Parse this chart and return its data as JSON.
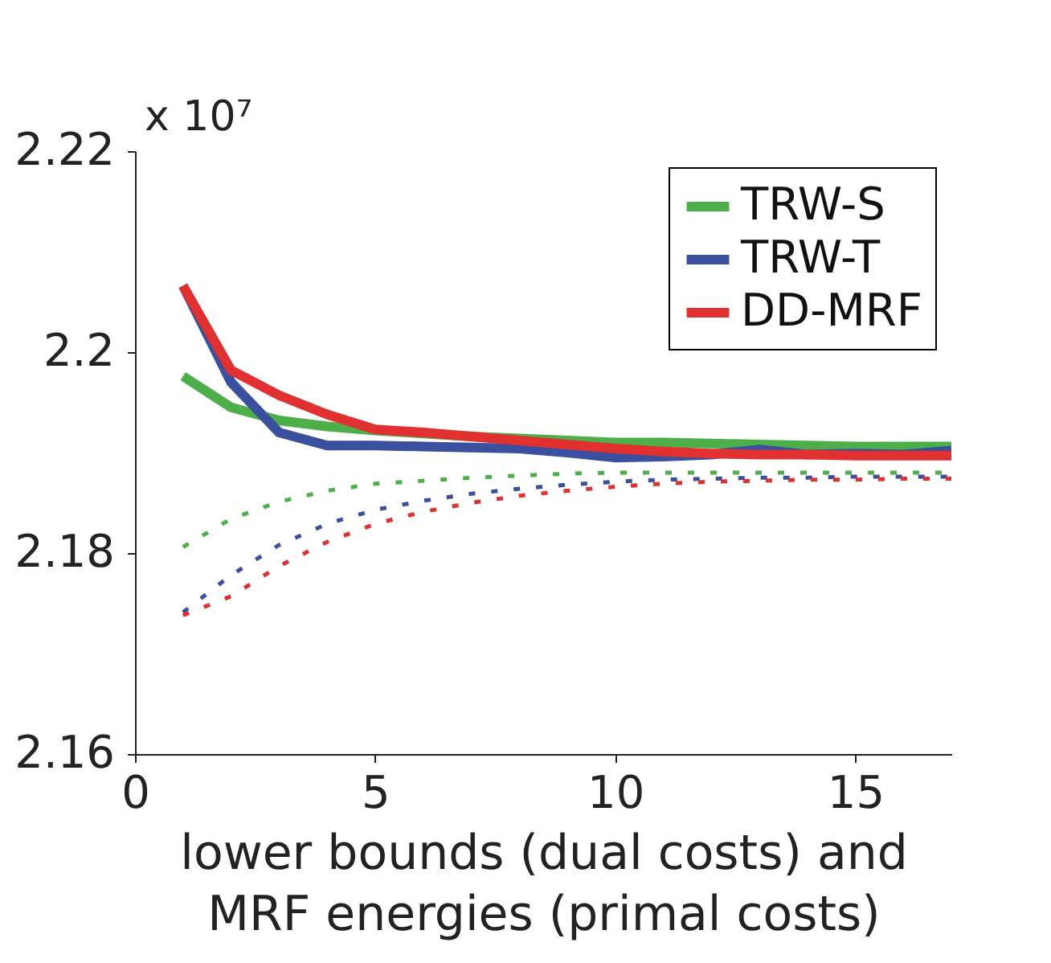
{
  "chart_data": {
    "type": "line",
    "xlabel": "lower bounds (dual costs) and\nMRF energies (primal costs)",
    "annotations": [
      "x 10⁷"
    ],
    "x": [
      1,
      2,
      3,
      4,
      5,
      6,
      7,
      8,
      9,
      10,
      11,
      12,
      13,
      14,
      15,
      16,
      17
    ],
    "series": [
      {
        "name": "TRW-S",
        "color": "#4daf4a",
        "line_style": "solid",
        "values": [
          2.1976,
          2.1945,
          2.1932,
          2.1926,
          2.1922,
          2.1919,
          2.1916,
          2.1914,
          2.1912,
          2.191,
          2.191,
          2.1909,
          2.1908,
          2.1907,
          2.1906,
          2.1906,
          2.1906
        ]
      },
      {
        "name": "TRW-T",
        "color": "#3a4f9e",
        "line_style": "solid",
        "values": [
          2.2066,
          2.197,
          2.192,
          2.1907,
          2.1907,
          2.1906,
          2.1905,
          2.1904,
          2.19,
          2.1895,
          2.1896,
          2.1898,
          2.1903,
          2.1898,
          2.1899,
          2.1898,
          2.1902
        ]
      },
      {
        "name": "DD-MRF",
        "color": "#e03030",
        "line_style": "solid",
        "values": [
          2.2066,
          2.1982,
          2.1957,
          2.1938,
          2.1923,
          2.192,
          2.1916,
          2.1912,
          2.1908,
          2.1904,
          2.1901,
          2.1899,
          2.1898,
          2.1898,
          2.1897,
          2.1897,
          2.1897
        ]
      },
      {
        "color": "#4daf4a",
        "line_style": "dashed",
        "values": [
          2.1806,
          2.1834,
          2.1851,
          2.1862,
          2.1869,
          2.1872,
          2.1875,
          2.1877,
          2.1879,
          2.188,
          2.188,
          2.188,
          2.188,
          2.188,
          2.188,
          2.188,
          2.188
        ]
      },
      {
        "color": "#3a4f9e",
        "line_style": "dashed",
        "values": [
          2.1741,
          2.1778,
          2.1808,
          2.1829,
          2.1843,
          2.1852,
          2.1859,
          2.1864,
          2.1868,
          2.1871,
          2.1873,
          2.1874,
          2.1875,
          2.1875,
          2.1876,
          2.1876,
          2.1876
        ]
      },
      {
        "color": "#e03030",
        "line_style": "dashed",
        "values": [
          2.1738,
          2.1757,
          2.1787,
          2.1811,
          2.1829,
          2.1841,
          2.185,
          2.1857,
          2.1862,
          2.1866,
          2.1869,
          2.1871,
          2.1872,
          2.1873,
          2.1873,
          2.1874,
          2.1874
        ]
      }
    ],
    "xlim": [
      0,
      17
    ],
    "xticks": [
      0,
      5,
      10,
      15
    ],
    "ylim": [
      2.16,
      2.22
    ],
    "yticks": [
      2.16,
      2.18,
      2.2,
      2.22
    ],
    "grid": false,
    "legend": "top right",
    "marker": "none"
  }
}
